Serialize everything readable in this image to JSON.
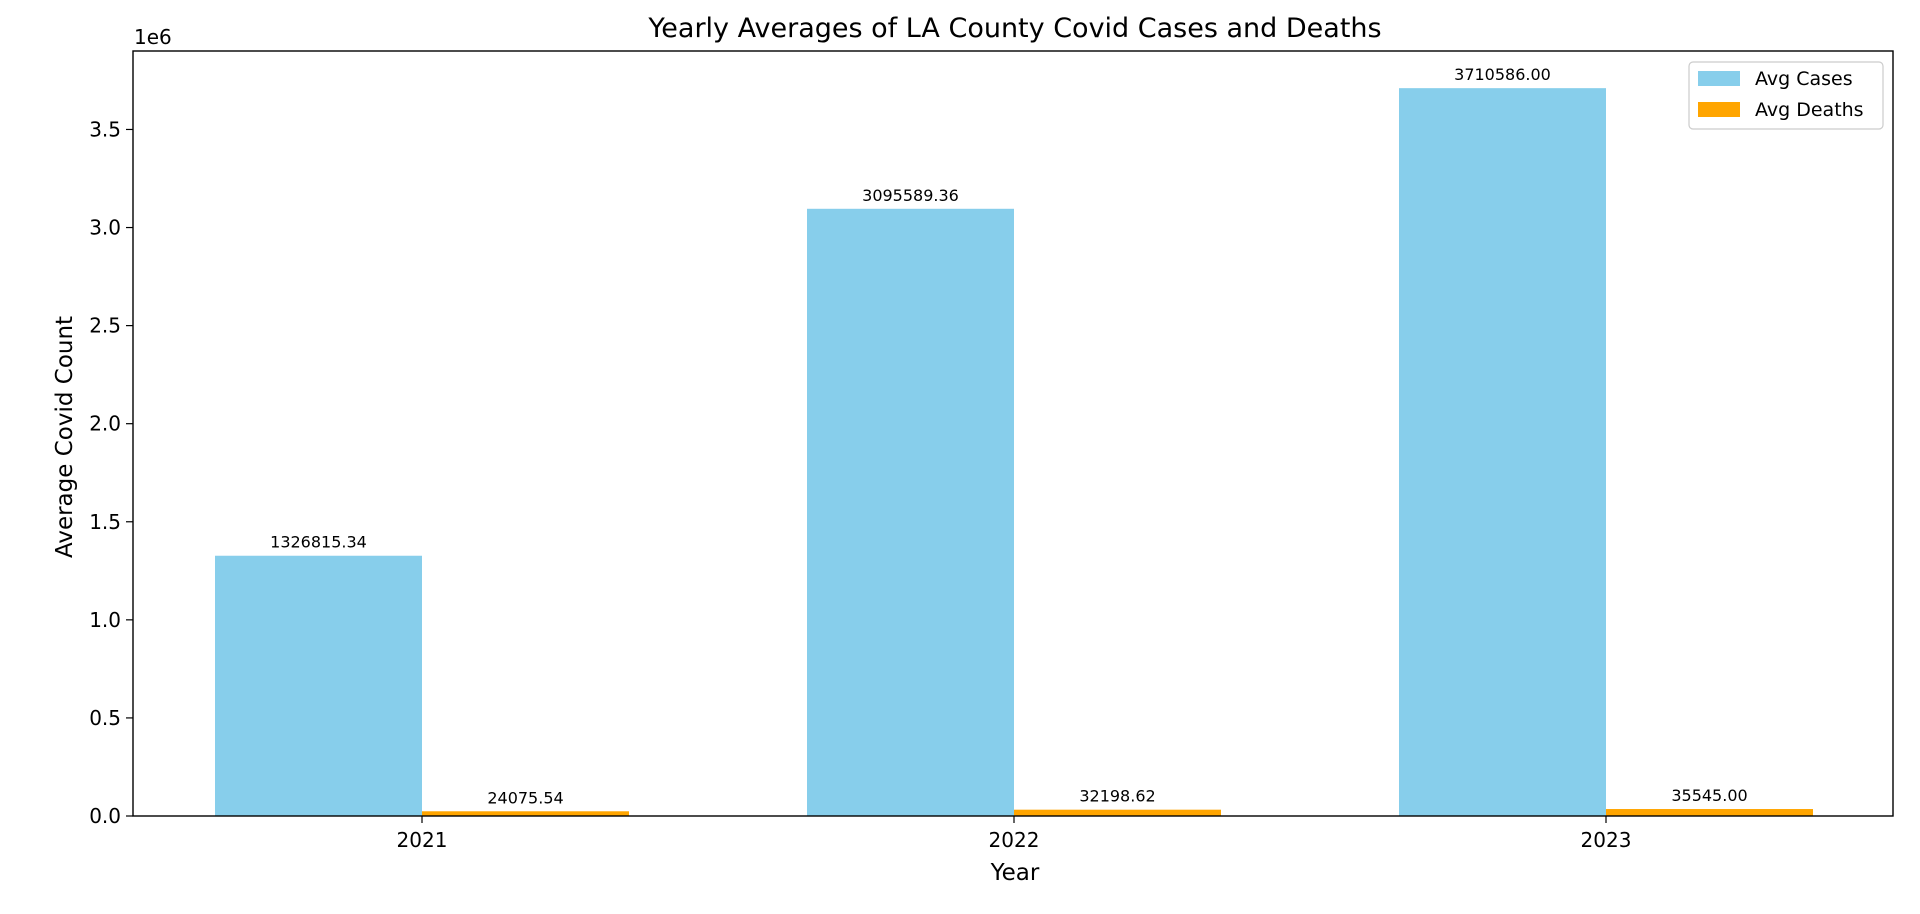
{
  "chart_data": {
    "type": "bar",
    "title": "Yearly Averages of LA County Covid Cases and Deaths",
    "xlabel": "Year",
    "ylabel": "Average Covid Count",
    "y_offset_label": "1e6",
    "y_scale": 1000000,
    "categories": [
      "2021",
      "2022",
      "2023"
    ],
    "ylim": [
      0,
      3900000
    ],
    "yticks": [
      0,
      500000,
      1000000,
      1500000,
      2000000,
      2500000,
      3000000,
      3500000
    ],
    "ytick_labels": [
      "0.0",
      "0.5",
      "1.0",
      "1.5",
      "2.0",
      "2.5",
      "3.0",
      "3.5"
    ],
    "series": [
      {
        "name": "Avg Cases",
        "color": "#87CEEB",
        "values": [
          1326815.34,
          3095589.36,
          3710586.0
        ],
        "labels": [
          "1326815.34",
          "3095589.36",
          "3710586.00"
        ]
      },
      {
        "name": "Avg Deaths",
        "color": "#FFA500",
        "values": [
          24075.54,
          32198.62,
          35545.0
        ],
        "labels": [
          "24075.54",
          "32198.62",
          "35545.00"
        ]
      }
    ],
    "legend_position": "top-right",
    "grid": false
  }
}
